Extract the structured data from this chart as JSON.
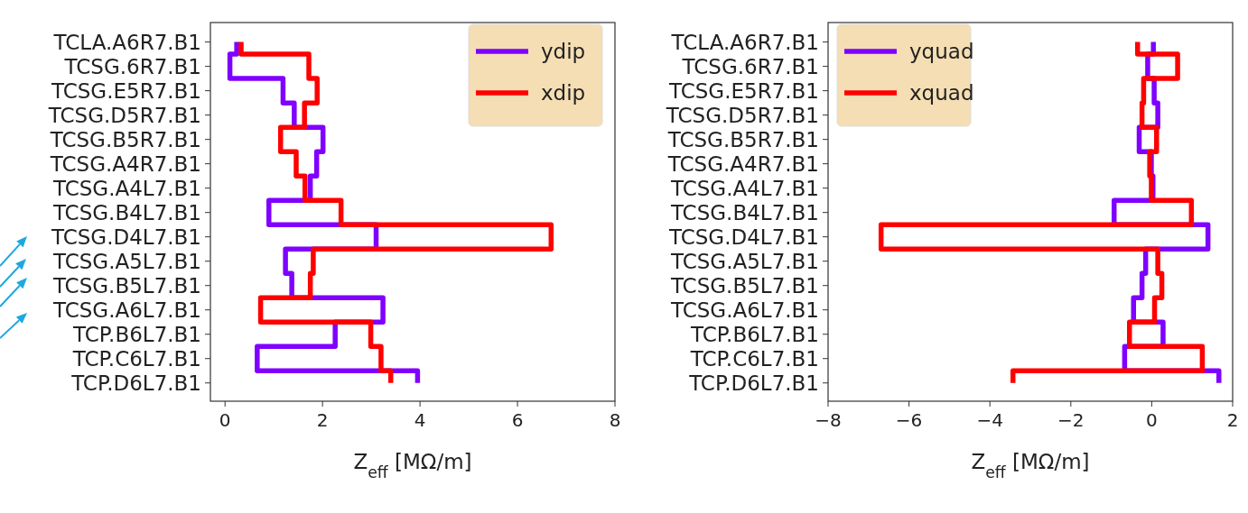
{
  "chart_data": [
    {
      "type": "step",
      "orientation": "horizontal",
      "xlabel": "Z$_{eff}$  [MΩ/m]",
      "categories": [
        "TCLA.A6R7.B1",
        "TCSG.6R7.B1",
        "TCSG.E5R7.B1",
        "TCSG.D5R7.B1",
        "TCSG.B5R7.B1",
        "TCSG.A4R7.B1",
        "TCSG.A4L7.B1",
        "TCSG.B4L7.B1",
        "TCSG.D4L7.B1",
        "TCSG.A5L7.B1",
        "TCSG.B5L7.B1",
        "TCSG.A6L7.B1",
        "TCP.B6L7.B1",
        "TCP.C6L7.B1",
        "TCP.D6L7.B1"
      ],
      "series": [
        {
          "name": "ydip",
          "color": "#7f00ff",
          "values": [
            0.24,
            0.1,
            1.19,
            1.42,
            2.01,
            1.88,
            1.75,
            0.9,
            3.1,
            1.24,
            1.37,
            3.24,
            2.26,
            0.66,
            3.95
          ]
        },
        {
          "name": "xdip",
          "color": "#ff0000",
          "values": [
            0.33,
            1.72,
            1.89,
            1.63,
            1.14,
            1.46,
            1.64,
            2.38,
            6.69,
            1.81,
            1.75,
            0.73,
            2.99,
            3.2,
            3.4
          ]
        }
      ],
      "xlim": [
        -0.3,
        8
      ],
      "xticks": [
        0,
        2,
        4,
        6,
        8
      ],
      "legend": "top right",
      "grid": false,
      "line_style": "solid"
    },
    {
      "type": "step",
      "orientation": "horizontal",
      "xlabel": "Z$_{eff}$  [MΩ/m]",
      "categories": [
        "TCLA.A6R7.B1",
        "TCSG.6R7.B1",
        "TCSG.E5R7.B1",
        "TCSG.D5R7.B1",
        "TCSG.B5R7.B1",
        "TCSG.A4R7.B1",
        "TCSG.A4L7.B1",
        "TCSG.B4L7.B1",
        "TCSG.D4L7.B1",
        "TCSG.A5L7.B1",
        "TCSG.B5L7.B1",
        "TCSG.A6L7.B1",
        "TCP.B6L7.B1",
        "TCP.C6L7.B1",
        "TCP.D6L7.B1"
      ],
      "series": [
        {
          "name": "yquad",
          "color": "#7f00ff",
          "values": [
            0.04,
            -0.1,
            0.06,
            0.15,
            -0.31,
            -0.01,
            0.03,
            -0.93,
            1.39,
            -0.15,
            -0.24,
            -0.45,
            0.28,
            -0.67,
            1.66
          ]
        },
        {
          "name": "xquad",
          "color": "#ff0000",
          "values": [
            -0.35,
            0.64,
            -0.2,
            -0.24,
            0.12,
            -0.05,
            -0.01,
            0.98,
            -6.69,
            0.15,
            0.25,
            0.07,
            -0.55,
            1.25,
            -3.43
          ]
        }
      ],
      "xlim": [
        -8,
        2
      ],
      "xticks": [
        {
          "value": -8,
          "label": "−8"
        },
        {
          "value": -6,
          "label": "−6"
        },
        {
          "value": -4,
          "label": "−4"
        },
        {
          "value": -2,
          "label": "−2"
        },
        0,
        2
      ],
      "legend": "top left",
      "grid": false,
      "line_style": "solid"
    }
  ]
}
